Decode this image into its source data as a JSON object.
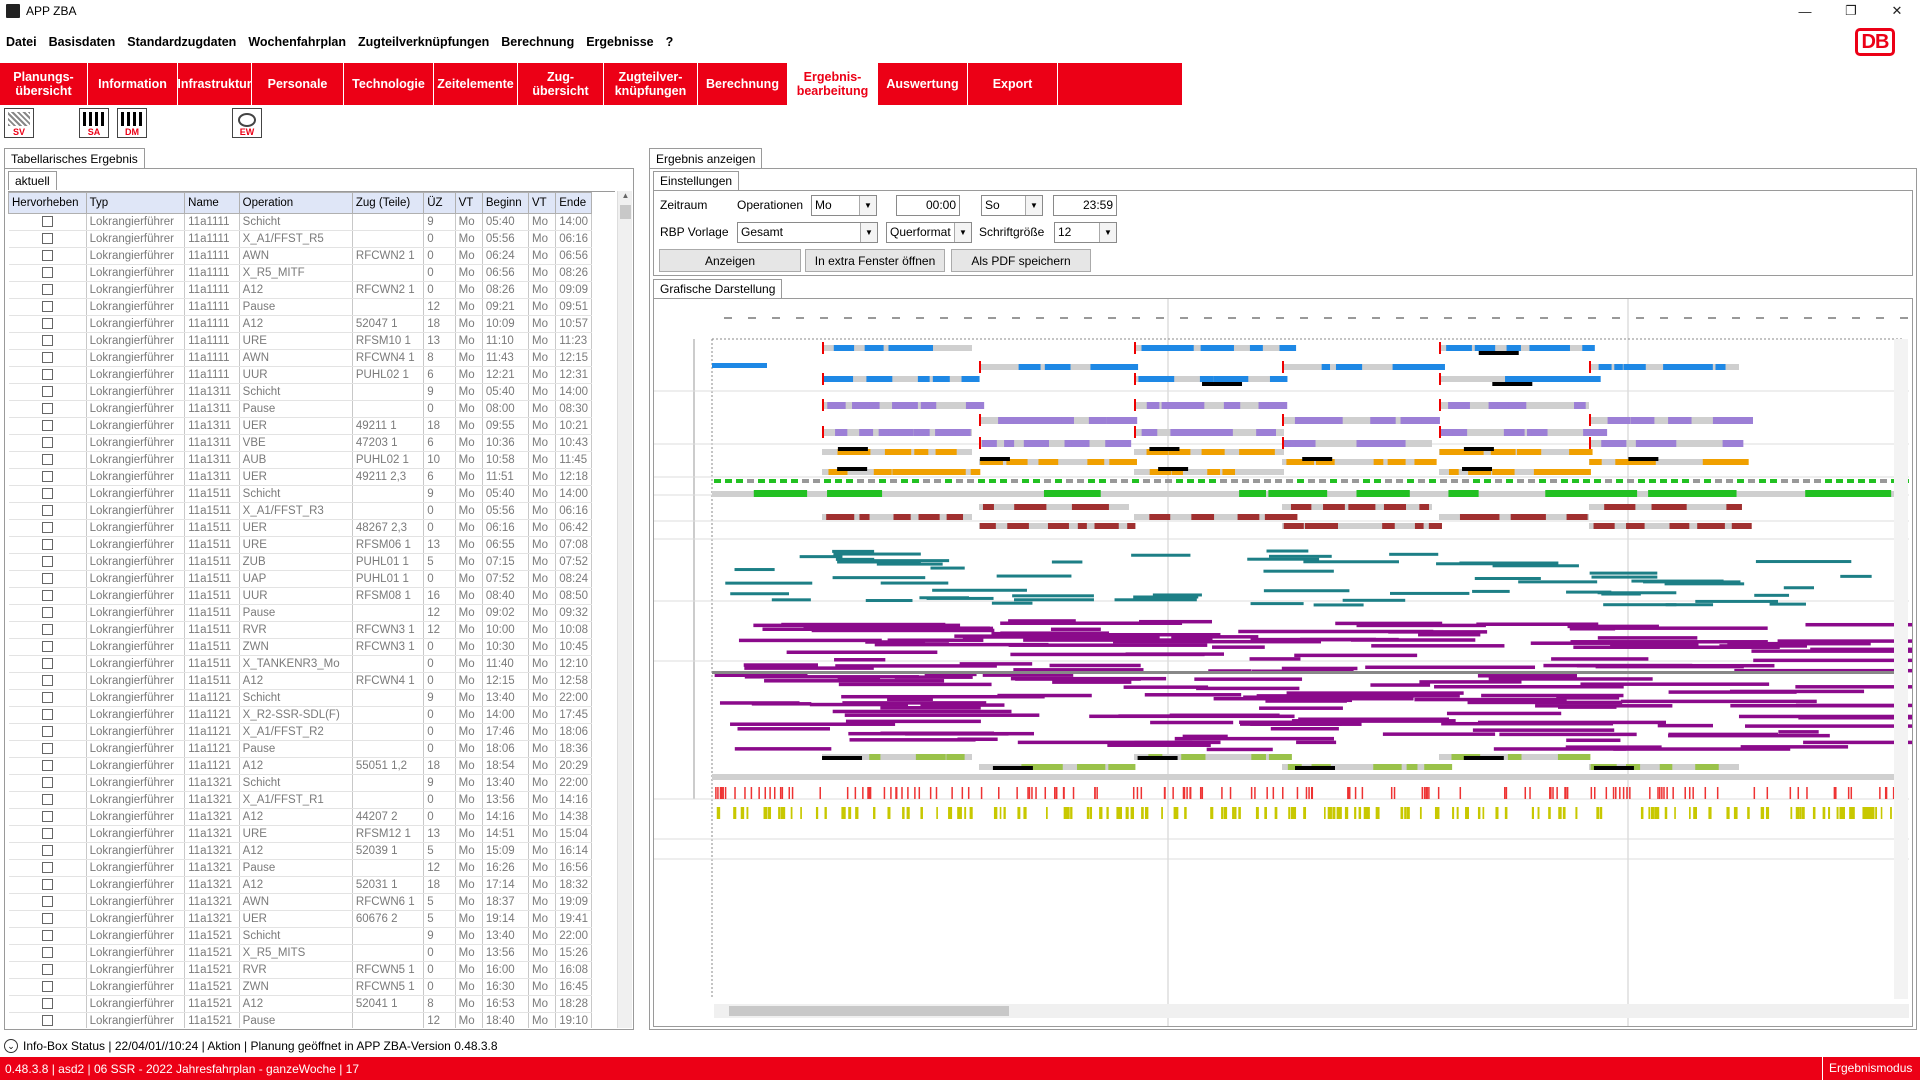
{
  "window": {
    "title": "APP ZBA"
  },
  "menu": [
    "Datei",
    "Basisdaten",
    "Standardzugdaten",
    "Wochenfahrplan",
    "Zugteilverknüpfungen",
    "Berechnung",
    "Ergebnisse",
    "?"
  ],
  "logo": "DB",
  "nav": [
    {
      "label": "Planungs-\nübersicht",
      "active": false
    },
    {
      "label": "Information",
      "active": false
    },
    {
      "label": "Infrastruktur",
      "active": false
    },
    {
      "label": "Personale",
      "active": false
    },
    {
      "label": "Technologie",
      "active": false
    },
    {
      "label": "Zeitelemente",
      "active": false
    },
    {
      "label": "Zug-\nübersicht",
      "active": false
    },
    {
      "label": "Zugteilver-\nknüpfungen",
      "active": false
    },
    {
      "label": "Berechnung",
      "active": false
    },
    {
      "label": "Ergebnis-\nbearbeitung",
      "active": true
    },
    {
      "label": "Auswertung",
      "active": false
    },
    {
      "label": "Export",
      "active": false
    }
  ],
  "tools": [
    "SV",
    "SA",
    "DM",
    "EW"
  ],
  "left": {
    "tab": "Tabellarisches Ergebnis",
    "subtab": "aktuell",
    "columns": [
      "Hervorheben",
      "Typ",
      "Name",
      "Operation",
      "Zug (Teile)",
      "ÜZ",
      "VT",
      "Beginn",
      "VT",
      "Ende"
    ],
    "rows": [
      [
        "Lokrangierführer",
        "11a1111",
        "Schicht",
        "",
        "9",
        "Mo",
        "05:40",
        "Mo",
        "14:00"
      ],
      [
        "Lokrangierführer",
        "11a1111",
        "X_A1/FFST_R5",
        "",
        "0",
        "Mo",
        "05:56",
        "Mo",
        "06:16"
      ],
      [
        "Lokrangierführer",
        "11a1111",
        "AWN",
        "RFCWN2 1",
        "0",
        "Mo",
        "06:24",
        "Mo",
        "06:56"
      ],
      [
        "Lokrangierführer",
        "11a1111",
        "X_R5_MITF",
        "",
        "0",
        "Mo",
        "06:56",
        "Mo",
        "08:26"
      ],
      [
        "Lokrangierführer",
        "11a1111",
        "A12",
        "RFCWN2 1",
        "0",
        "Mo",
        "08:26",
        "Mo",
        "09:09"
      ],
      [
        "Lokrangierführer",
        "11a1111",
        "Pause",
        "",
        "12",
        "Mo",
        "09:21",
        "Mo",
        "09:51"
      ],
      [
        "Lokrangierführer",
        "11a1111",
        "A12",
        "52047 1",
        "18",
        "Mo",
        "10:09",
        "Mo",
        "10:57"
      ],
      [
        "Lokrangierführer",
        "11a1111",
        "URE",
        "RFSM10 1",
        "13",
        "Mo",
        "11:10",
        "Mo",
        "11:23"
      ],
      [
        "Lokrangierführer",
        "11a1111",
        "AWN",
        "RFCWN4 1",
        "8",
        "Mo",
        "11:43",
        "Mo",
        "12:15"
      ],
      [
        "Lokrangierführer",
        "11a1111",
        "UUR",
        "PUHL02 1",
        "6",
        "Mo",
        "12:21",
        "Mo",
        "12:31"
      ],
      [
        "Lokrangierführer",
        "11a1311",
        "Schicht",
        "",
        "9",
        "Mo",
        "05:40",
        "Mo",
        "14:00"
      ],
      [
        "Lokrangierführer",
        "11a1311",
        "Pause",
        "",
        "0",
        "Mo",
        "08:00",
        "Mo",
        "08:30"
      ],
      [
        "Lokrangierführer",
        "11a1311",
        "UER",
        "49211 1",
        "18",
        "Mo",
        "09:55",
        "Mo",
        "10:21"
      ],
      [
        "Lokrangierführer",
        "11a1311",
        "VBE",
        "47203 1",
        "6",
        "Mo",
        "10:36",
        "Mo",
        "10:43"
      ],
      [
        "Lokrangierführer",
        "11a1311",
        "AUB",
        "PUHL02 1",
        "10",
        "Mo",
        "10:58",
        "Mo",
        "11:45"
      ],
      [
        "Lokrangierführer",
        "11a1311",
        "UER",
        "49211 2,3",
        "6",
        "Mo",
        "11:51",
        "Mo",
        "12:18"
      ],
      [
        "Lokrangierführer",
        "11a1511",
        "Schicht",
        "",
        "9",
        "Mo",
        "05:40",
        "Mo",
        "14:00"
      ],
      [
        "Lokrangierführer",
        "11a1511",
        "X_A1/FFST_R3",
        "",
        "0",
        "Mo",
        "05:56",
        "Mo",
        "06:16"
      ],
      [
        "Lokrangierführer",
        "11a1511",
        "UER",
        "48267 2,3",
        "0",
        "Mo",
        "06:16",
        "Mo",
        "06:42"
      ],
      [
        "Lokrangierführer",
        "11a1511",
        "URE",
        "RFSM06 1",
        "13",
        "Mo",
        "06:55",
        "Mo",
        "07:08"
      ],
      [
        "Lokrangierführer",
        "11a1511",
        "ZUB",
        "PUHL01 1",
        "5",
        "Mo",
        "07:15",
        "Mo",
        "07:52"
      ],
      [
        "Lokrangierführer",
        "11a1511",
        "UAP",
        "PUHL01 1",
        "0",
        "Mo",
        "07:52",
        "Mo",
        "08:24"
      ],
      [
        "Lokrangierführer",
        "11a1511",
        "UUR",
        "RFSM08 1",
        "16",
        "Mo",
        "08:40",
        "Mo",
        "08:50"
      ],
      [
        "Lokrangierführer",
        "11a1511",
        "Pause",
        "",
        "12",
        "Mo",
        "09:02",
        "Mo",
        "09:32"
      ],
      [
        "Lokrangierführer",
        "11a1511",
        "RVR",
        "RFCWN3 1",
        "12",
        "Mo",
        "10:00",
        "Mo",
        "10:08"
      ],
      [
        "Lokrangierführer",
        "11a1511",
        "ZWN",
        "RFCWN3 1",
        "0",
        "Mo",
        "10:30",
        "Mo",
        "10:45"
      ],
      [
        "Lokrangierführer",
        "11a1511",
        "X_TANKENR3_Mo",
        "",
        "0",
        "Mo",
        "11:40",
        "Mo",
        "12:10"
      ],
      [
        "Lokrangierführer",
        "11a1511",
        "A12",
        "RFCWN4 1",
        "0",
        "Mo",
        "12:15",
        "Mo",
        "12:58"
      ],
      [
        "Lokrangierführer",
        "11a1121",
        "Schicht",
        "",
        "9",
        "Mo",
        "13:40",
        "Mo",
        "22:00"
      ],
      [
        "Lokrangierführer",
        "11a1121",
        "X_R2-SSR-SDL(F)",
        "",
        "0",
        "Mo",
        "14:00",
        "Mo",
        "17:45"
      ],
      [
        "Lokrangierführer",
        "11a1121",
        "X_A1/FFST_R2",
        "",
        "0",
        "Mo",
        "17:46",
        "Mo",
        "18:06"
      ],
      [
        "Lokrangierführer",
        "11a1121",
        "Pause",
        "",
        "0",
        "Mo",
        "18:06",
        "Mo",
        "18:36"
      ],
      [
        "Lokrangierführer",
        "11a1121",
        "A12",
        "55051 1,2",
        "18",
        "Mo",
        "18:54",
        "Mo",
        "20:29"
      ],
      [
        "Lokrangierführer",
        "11a1321",
        "Schicht",
        "",
        "9",
        "Mo",
        "13:40",
        "Mo",
        "22:00"
      ],
      [
        "Lokrangierführer",
        "11a1321",
        "X_A1/FFST_R1",
        "",
        "0",
        "Mo",
        "13:56",
        "Mo",
        "14:16"
      ],
      [
        "Lokrangierführer",
        "11a1321",
        "A12",
        "44207 2",
        "0",
        "Mo",
        "14:16",
        "Mo",
        "14:38"
      ],
      [
        "Lokrangierführer",
        "11a1321",
        "URE",
        "RFSM12 1",
        "13",
        "Mo",
        "14:51",
        "Mo",
        "15:04"
      ],
      [
        "Lokrangierführer",
        "11a1321",
        "A12",
        "52039 1",
        "5",
        "Mo",
        "15:09",
        "Mo",
        "16:14"
      ],
      [
        "Lokrangierführer",
        "11a1321",
        "Pause",
        "",
        "12",
        "Mo",
        "16:26",
        "Mo",
        "16:56"
      ],
      [
        "Lokrangierführer",
        "11a1321",
        "A12",
        "52031 1",
        "18",
        "Mo",
        "17:14",
        "Mo",
        "18:32"
      ],
      [
        "Lokrangierführer",
        "11a1321",
        "AWN",
        "RFCWN6 1",
        "5",
        "Mo",
        "18:37",
        "Mo",
        "19:09"
      ],
      [
        "Lokrangierführer",
        "11a1321",
        "UER",
        "60676 2",
        "5",
        "Mo",
        "19:14",
        "Mo",
        "19:41"
      ],
      [
        "Lokrangierführer",
        "11a1521",
        "Schicht",
        "",
        "9",
        "Mo",
        "13:40",
        "Mo",
        "22:00"
      ],
      [
        "Lokrangierführer",
        "11a1521",
        "X_R5_MITS",
        "",
        "0",
        "Mo",
        "13:56",
        "Mo",
        "15:26"
      ],
      [
        "Lokrangierführer",
        "11a1521",
        "RVR",
        "RFCWN5 1",
        "0",
        "Mo",
        "16:00",
        "Mo",
        "16:08"
      ],
      [
        "Lokrangierführer",
        "11a1521",
        "ZWN",
        "RFCWN5 1",
        "0",
        "Mo",
        "16:30",
        "Mo",
        "16:45"
      ],
      [
        "Lokrangierführer",
        "11a1521",
        "A12",
        "52041 1",
        "8",
        "Mo",
        "16:53",
        "Mo",
        "18:28"
      ],
      [
        "Lokrangierführer",
        "11a1521",
        "Pause",
        "",
        "12",
        "Mo",
        "18:40",
        "Mo",
        "19:10"
      ]
    ]
  },
  "right": {
    "tab": "Ergebnis anzeigen",
    "settings_tab": "Einstellungen",
    "labels": {
      "zeitraum": "Zeitraum",
      "operationen": "Operationen",
      "rbp": "RBP Vorlage",
      "schriftgroesse": "Schriftgröße"
    },
    "values": {
      "day_from": "Mo",
      "time_from": "00:00",
      "day_to": "So",
      "time_to": "23:59",
      "rbp": "Gesamt",
      "format": "Querformat",
      "fontsize": "12"
    },
    "buttons": {
      "show": "Anzeigen",
      "extra": "In extra Fenster öffnen",
      "pdf": "Als PDF speichern"
    },
    "graphic_tab": "Grafische Darstellung"
  },
  "status": {
    "info": "Info-Box Status | 22/04/01//10:24 | Aktion | Planung geöffnet in APP ZBA-Version 0.48.3.8",
    "bar": "0.48.3.8 | asd2 | 06 SSR - 2022 Jahresfahrplan - ganzeWoche | 17",
    "mode": "Ergebnismodus"
  },
  "colors": {
    "accent": "#ec0016",
    "blue": "#1e88e5",
    "purple": "#9c7fd6",
    "orange": "#f0a000",
    "green": "#22c022",
    "brown": "#a03030",
    "teal": "#1d7f86",
    "magenta": "#8b0a8b",
    "olive": "#c8c800"
  }
}
